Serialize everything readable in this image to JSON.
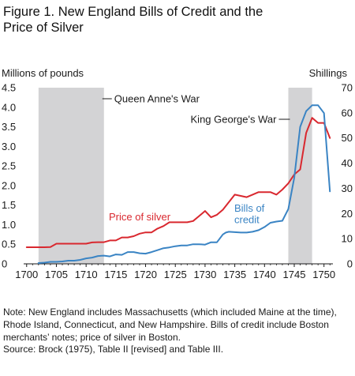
{
  "title": "Figure 1. New England Bills of Credit and the Price of Silver",
  "note": "Note: New England includes Massachusetts (which included Maine at the time), Rhode Island, Connecticut, and New Hampshire. Bills of credit include Boston merchants’ notes; price of silver in Boston.",
  "source": "Source: Brock (1975), Table II [revised] and Table III.",
  "colors": {
    "bills": "#3a84c4",
    "silver": "#d9282f",
    "war_shading": "#d3d3d5",
    "axis": "#1a1a1a"
  },
  "chart_data": {
    "type": "line",
    "ylabel_left": "Millions of pounds",
    "ylabel_right": "Shillings",
    "xlim": [
      1699.5,
      1751.5
    ],
    "ylim_left": [
      0,
      4.5
    ],
    "ylim_right": [
      0,
      70
    ],
    "x_ticks": [
      1700,
      1705,
      1710,
      1715,
      1720,
      1725,
      1730,
      1735,
      1740,
      1745,
      1750
    ],
    "y_ticks_left": [
      "0",
      "0.5",
      "1.0",
      "1.5",
      "2.0",
      "2.5",
      "3.0",
      "3.5",
      "4.0",
      "4.5"
    ],
    "y_ticks_left_values": [
      0,
      0.5,
      1,
      1.5,
      2,
      2.5,
      3,
      3.5,
      4,
      4.5
    ],
    "y_ticks_right": [
      "0",
      "10",
      "20",
      "30",
      "40",
      "50",
      "60",
      "70"
    ],
    "y_ticks_right_values": [
      0,
      10,
      20,
      30,
      40,
      50,
      60,
      70
    ],
    "grid": false,
    "wars": [
      {
        "name": "Queen Anne's War",
        "start": 1702,
        "end": 1713
      },
      {
        "name": "King George's War",
        "start": 1744,
        "end": 1748
      }
    ],
    "series": [
      {
        "name": "Price of silver",
        "axis": "right",
        "x": [
          1700,
          1701,
          1702,
          1703,
          1704,
          1705,
          1706,
          1707,
          1708,
          1709,
          1710,
          1711,
          1712,
          1713,
          1714,
          1715,
          1716,
          1717,
          1718,
          1719,
          1720,
          1721,
          1722,
          1723,
          1724,
          1725,
          1726,
          1727,
          1728,
          1729,
          1730,
          1731,
          1732,
          1733,
          1734,
          1735,
          1736,
          1737,
          1738,
          1739,
          1740,
          1741,
          1742,
          1743,
          1744,
          1745,
          1746,
          1747,
          1748,
          1749,
          1750,
          1751
        ],
        "values": [
          6.6,
          6.6,
          6.6,
          6.6,
          6.7,
          8,
          8,
          8,
          8,
          8,
          8,
          8.5,
          8.6,
          8.6,
          9.3,
          9.3,
          10.5,
          10.5,
          11,
          12,
          12.5,
          12.5,
          14,
          15,
          16.5,
          16.5,
          16.5,
          16.5,
          17,
          19,
          21,
          18.5,
          19.5,
          21.5,
          24.5,
          27.5,
          27,
          26.5,
          27.5,
          28.5,
          28.5,
          28.5,
          27.5,
          29.5,
          32,
          35.5,
          37.5,
          52,
          58,
          56,
          56,
          50
        ]
      },
      {
        "name": "Bills of\ncredit",
        "axis": "left",
        "x": [
          1702,
          1703,
          1704,
          1705,
          1706,
          1707,
          1708,
          1709,
          1710,
          1711,
          1712,
          1713,
          1714,
          1715,
          1716,
          1717,
          1718,
          1719,
          1720,
          1721,
          1722,
          1723,
          1724,
          1725,
          1726,
          1727,
          1728,
          1729,
          1730,
          1731,
          1732,
          1733,
          1733.5,
          1734,
          1735,
          1736,
          1737,
          1738,
          1739,
          1740,
          1741,
          1742,
          1743,
          1744,
          1745,
          1746,
          1747,
          1748,
          1749,
          1750,
          1751
        ],
        "values": [
          0.02,
          0.03,
          0.05,
          0.05,
          0.06,
          0.08,
          0.08,
          0.1,
          0.14,
          0.16,
          0.2,
          0.21,
          0.19,
          0.24,
          0.23,
          0.3,
          0.3,
          0.27,
          0.26,
          0.3,
          0.35,
          0.4,
          0.42,
          0.45,
          0.47,
          0.47,
          0.5,
          0.5,
          0.49,
          0.55,
          0.55,
          0.75,
          0.8,
          0.82,
          0.81,
          0.8,
          0.8,
          0.82,
          0.86,
          0.94,
          1.05,
          1.08,
          1.1,
          1.4,
          2.2,
          3.5,
          3.9,
          4.05,
          4.05,
          3.85,
          1.85
        ]
      }
    ]
  }
}
